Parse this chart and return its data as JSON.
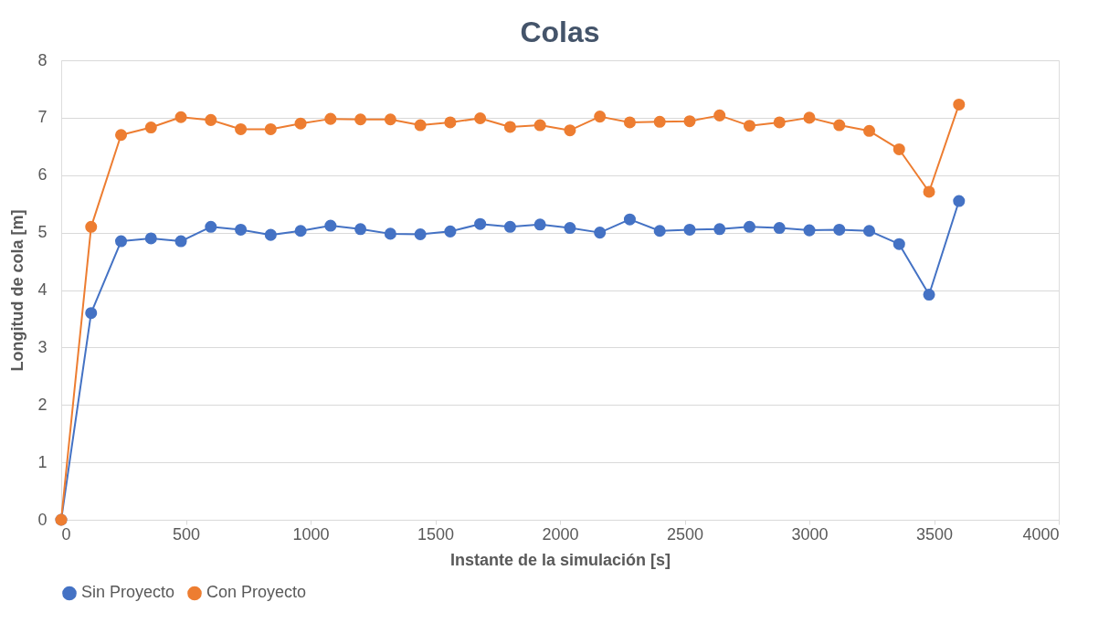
{
  "chart_data": {
    "type": "line",
    "title": "Colas",
    "xlabel": "Instante de la simulación [s]",
    "ylabel": "Longitud de cola [m]",
    "x": [
      0,
      120,
      240,
      360,
      480,
      600,
      720,
      840,
      960,
      1080,
      1200,
      1320,
      1440,
      1560,
      1680,
      1800,
      1920,
      2040,
      2160,
      2280,
      2400,
      2520,
      2640,
      2760,
      2880,
      3000,
      3120,
      3240,
      3360,
      3480,
      3600
    ],
    "series": [
      {
        "name": "Sin Proyecto",
        "color": "#4472c4",
        "values": [
          0,
          3.6,
          4.85,
          4.9,
          4.85,
          5.1,
          5.05,
          4.96,
          5.03,
          5.12,
          5.06,
          4.98,
          4.97,
          5.02,
          5.15,
          5.1,
          5.14,
          5.08,
          5.0,
          5.23,
          5.03,
          5.05,
          5.06,
          5.1,
          5.08,
          5.04,
          5.05,
          5.03,
          4.8,
          3.92,
          5.55
        ]
      },
      {
        "name": "Con Proyecto",
        "color": "#ed7d31",
        "values": [
          0,
          5.1,
          6.7,
          6.83,
          7.01,
          6.96,
          6.8,
          6.8,
          6.9,
          6.98,
          6.97,
          6.97,
          6.87,
          6.92,
          6.99,
          6.84,
          6.87,
          6.78,
          7.02,
          6.92,
          6.93,
          6.94,
          7.04,
          6.86,
          6.92,
          7.0,
          6.87,
          6.77,
          6.45,
          5.71,
          7.23
        ]
      }
    ],
    "xlim": [
      0,
      4000
    ],
    "xticks": [
      0,
      500,
      1000,
      1500,
      2000,
      2500,
      3000,
      3500,
      4000
    ],
    "ylim": [
      0,
      8
    ],
    "yticks": [
      0,
      1,
      2,
      3,
      4,
      5,
      6,
      7,
      8
    ],
    "grid": "y",
    "legend": "bottom",
    "marker": "circle",
    "line_style": "solid"
  }
}
